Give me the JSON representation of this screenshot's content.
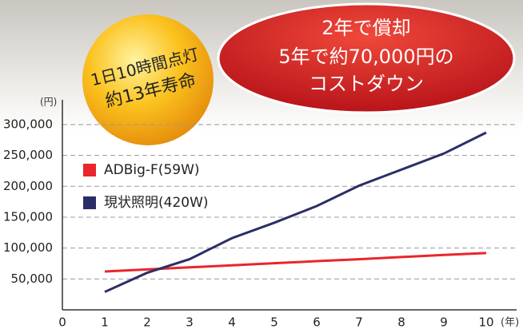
{
  "chart_data": {
    "type": "line",
    "x": [
      1,
      2,
      3,
      4,
      5,
      6,
      7,
      8,
      9,
      10
    ],
    "series": [
      {
        "name": "ADBig-F(59W)",
        "color": "#e8262b",
        "values": [
          62000,
          65500,
          68800,
          72000,
          75500,
          78800,
          82000,
          85500,
          88800,
          92000
        ]
      },
      {
        "name": "現状照明(420W)",
        "color": "#2b2e66",
        "values": [
          29000,
          60000,
          82000,
          116000,
          141000,
          168000,
          201000,
          227000,
          253000,
          287000
        ]
      }
    ],
    "xlim": [
      0,
      10
    ],
    "xticks": [
      0,
      1,
      2,
      3,
      4,
      5,
      6,
      7,
      8,
      9,
      10
    ],
    "ylim": [
      0,
      340000
    ],
    "yticks": [
      {
        "value": 50000,
        "label": "50,000"
      },
      {
        "value": 100000,
        "label": "100,000"
      },
      {
        "value": 150000,
        "label": "150,000"
      },
      {
        "value": 200000,
        "label": "200,000"
      },
      {
        "value": 250000,
        "label": "250,000"
      },
      {
        "value": 300000,
        "label": "300,000"
      }
    ],
    "x_unit": "(年)",
    "y_unit": "(円)",
    "grid": true,
    "badge_lines": [
      "1日10時間点灯",
      "約13年寿命"
    ],
    "banner_lines": [
      "2年で償却",
      "5年で約70,000円の",
      "コストダウン"
    ]
  }
}
